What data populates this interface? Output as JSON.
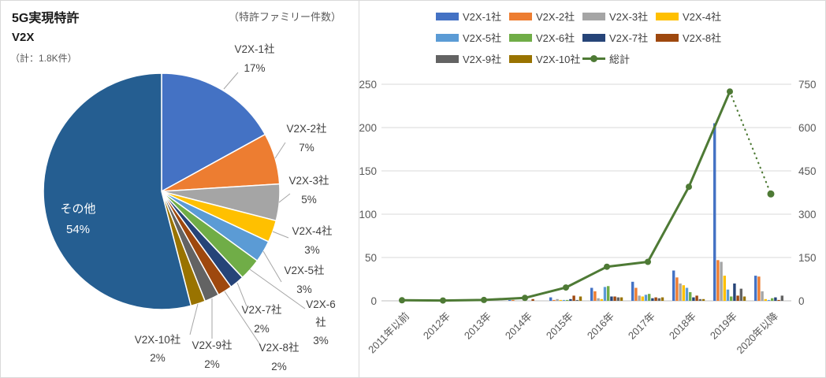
{
  "figure": {
    "left_panel": {
      "title": "5G実現特許",
      "subtitle": "V2X",
      "total_label": "（計：1.8K件）",
      "unit_label": "（特許ファミリー件数）"
    }
  },
  "chart_data": [
    {
      "type": "pie",
      "title": "5G実現特許 V2X",
      "total_note": "計：1.8K件",
      "slices": [
        {
          "label": "V2X-1社",
          "pct": 17,
          "color": "#4472C4"
        },
        {
          "label": "V2X-2社",
          "pct": 7,
          "color": "#ED7D31"
        },
        {
          "label": "V2X-3社",
          "pct": 5,
          "color": "#A5A5A5"
        },
        {
          "label": "V2X-4社",
          "pct": 3,
          "color": "#FFC000"
        },
        {
          "label": "V2X-5社",
          "pct": 3,
          "color": "#5B9BD5"
        },
        {
          "label": "V2X-6社",
          "pct": 3,
          "color": "#70AD47"
        },
        {
          "label": "V2X-7社",
          "pct": 2,
          "color": "#264478"
        },
        {
          "label": "V2X-8社",
          "pct": 2,
          "color": "#9E480E"
        },
        {
          "label": "V2X-9社",
          "pct": 2,
          "color": "#636363"
        },
        {
          "label": "V2X-10社",
          "pct": 2,
          "color": "#997300"
        },
        {
          "label": "その他",
          "pct": 54,
          "color": "#255E91"
        }
      ]
    },
    {
      "type": "bar+line",
      "categories": [
        "2011年以前",
        "2012年",
        "2013年",
        "2014年",
        "2015年",
        "2016年",
        "2017年",
        "2018年",
        "2019年",
        "2020年以降"
      ],
      "bar_series": [
        {
          "name": "V2X-1社",
          "color": "#4472C4",
          "values": [
            0,
            0,
            0,
            1,
            4,
            15,
            22,
            35,
            205,
            29
          ]
        },
        {
          "name": "V2X-2社",
          "color": "#ED7D31",
          "values": [
            0,
            0,
            0,
            1,
            1,
            11,
            15,
            27,
            47,
            28
          ]
        },
        {
          "name": "V2X-3社",
          "color": "#A5A5A5",
          "values": [
            0,
            0,
            0,
            0,
            2,
            3,
            6,
            20,
            45,
            11
          ]
        },
        {
          "name": "V2X-4社",
          "color": "#FFC000",
          "values": [
            0,
            0,
            0,
            0,
            1,
            2,
            5,
            18,
            29,
            2
          ]
        },
        {
          "name": "V2X-5社",
          "color": "#5B9BD5",
          "values": [
            0,
            0,
            0,
            0,
            1,
            16,
            7,
            15,
            13,
            1
          ]
        },
        {
          "name": "V2X-6社",
          "color": "#70AD47",
          "values": [
            0,
            0,
            0,
            0,
            1,
            17,
            8,
            10,
            5,
            3
          ]
        },
        {
          "name": "V2X-7社",
          "color": "#264478",
          "values": [
            0,
            0,
            0,
            0,
            2,
            5,
            3,
            4,
            20,
            4
          ]
        },
        {
          "name": "V2X-8社",
          "color": "#9E480E",
          "values": [
            0,
            0,
            0,
            2,
            6,
            5,
            4,
            6,
            6,
            1
          ]
        },
        {
          "name": "V2X-9社",
          "color": "#636363",
          "values": [
            0,
            0,
            0,
            0,
            1,
            4,
            3,
            2,
            14,
            6
          ]
        },
        {
          "name": "V2X-10社",
          "color": "#997300",
          "values": [
            0,
            0,
            0,
            0,
            5,
            4,
            4,
            2,
            5,
            0
          ]
        }
      ],
      "line_series": {
        "name": "総計",
        "color": "#4E7A35",
        "axis": "right",
        "values": [
          2,
          1,
          3,
          10,
          46,
          118,
          135,
          395,
          725,
          370
        ],
        "dotted_last_segment": true
      },
      "left_axis": {
        "ticks": [
          0,
          50,
          100,
          150,
          200,
          250
        ],
        "max": 250
      },
      "right_axis": {
        "ticks": [
          0,
          150,
          300,
          450,
          600,
          750
        ],
        "max": 750
      },
      "grid": true,
      "legend_position": "top"
    }
  ]
}
